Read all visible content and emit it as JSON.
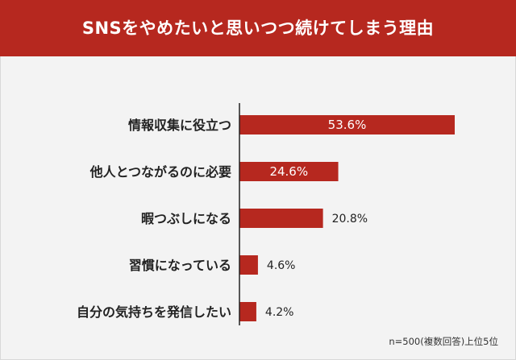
{
  "header": {
    "title": "SNSをやめたいと思いつつ続けてしまう理由"
  },
  "note": "n=500(複数回答)上位5位",
  "colors": {
    "header": "#b6281f",
    "bar": "#b6281f",
    "background": "#f3f3f3",
    "axis": "#222222",
    "label": "#222222",
    "value_inside": "#ffffff"
  },
  "chart_data": {
    "type": "bar",
    "orientation": "horizontal",
    "title": "SNSをやめたいと思いつつ続けてしまう理由",
    "categories": [
      "情報収集に役立つ",
      "他人とつながるのに必要",
      "暇つぶしになる",
      "習慣になっている",
      "自分の気持ちを発信したい"
    ],
    "values": [
      53.6,
      24.6,
      20.8,
      4.6,
      4.2
    ],
    "value_labels": [
      "53.6%",
      "24.6%",
      "20.8%",
      "4.6%",
      "4.2%"
    ],
    "xlim": [
      0,
      53.6
    ],
    "grid": false,
    "legend": "none"
  }
}
